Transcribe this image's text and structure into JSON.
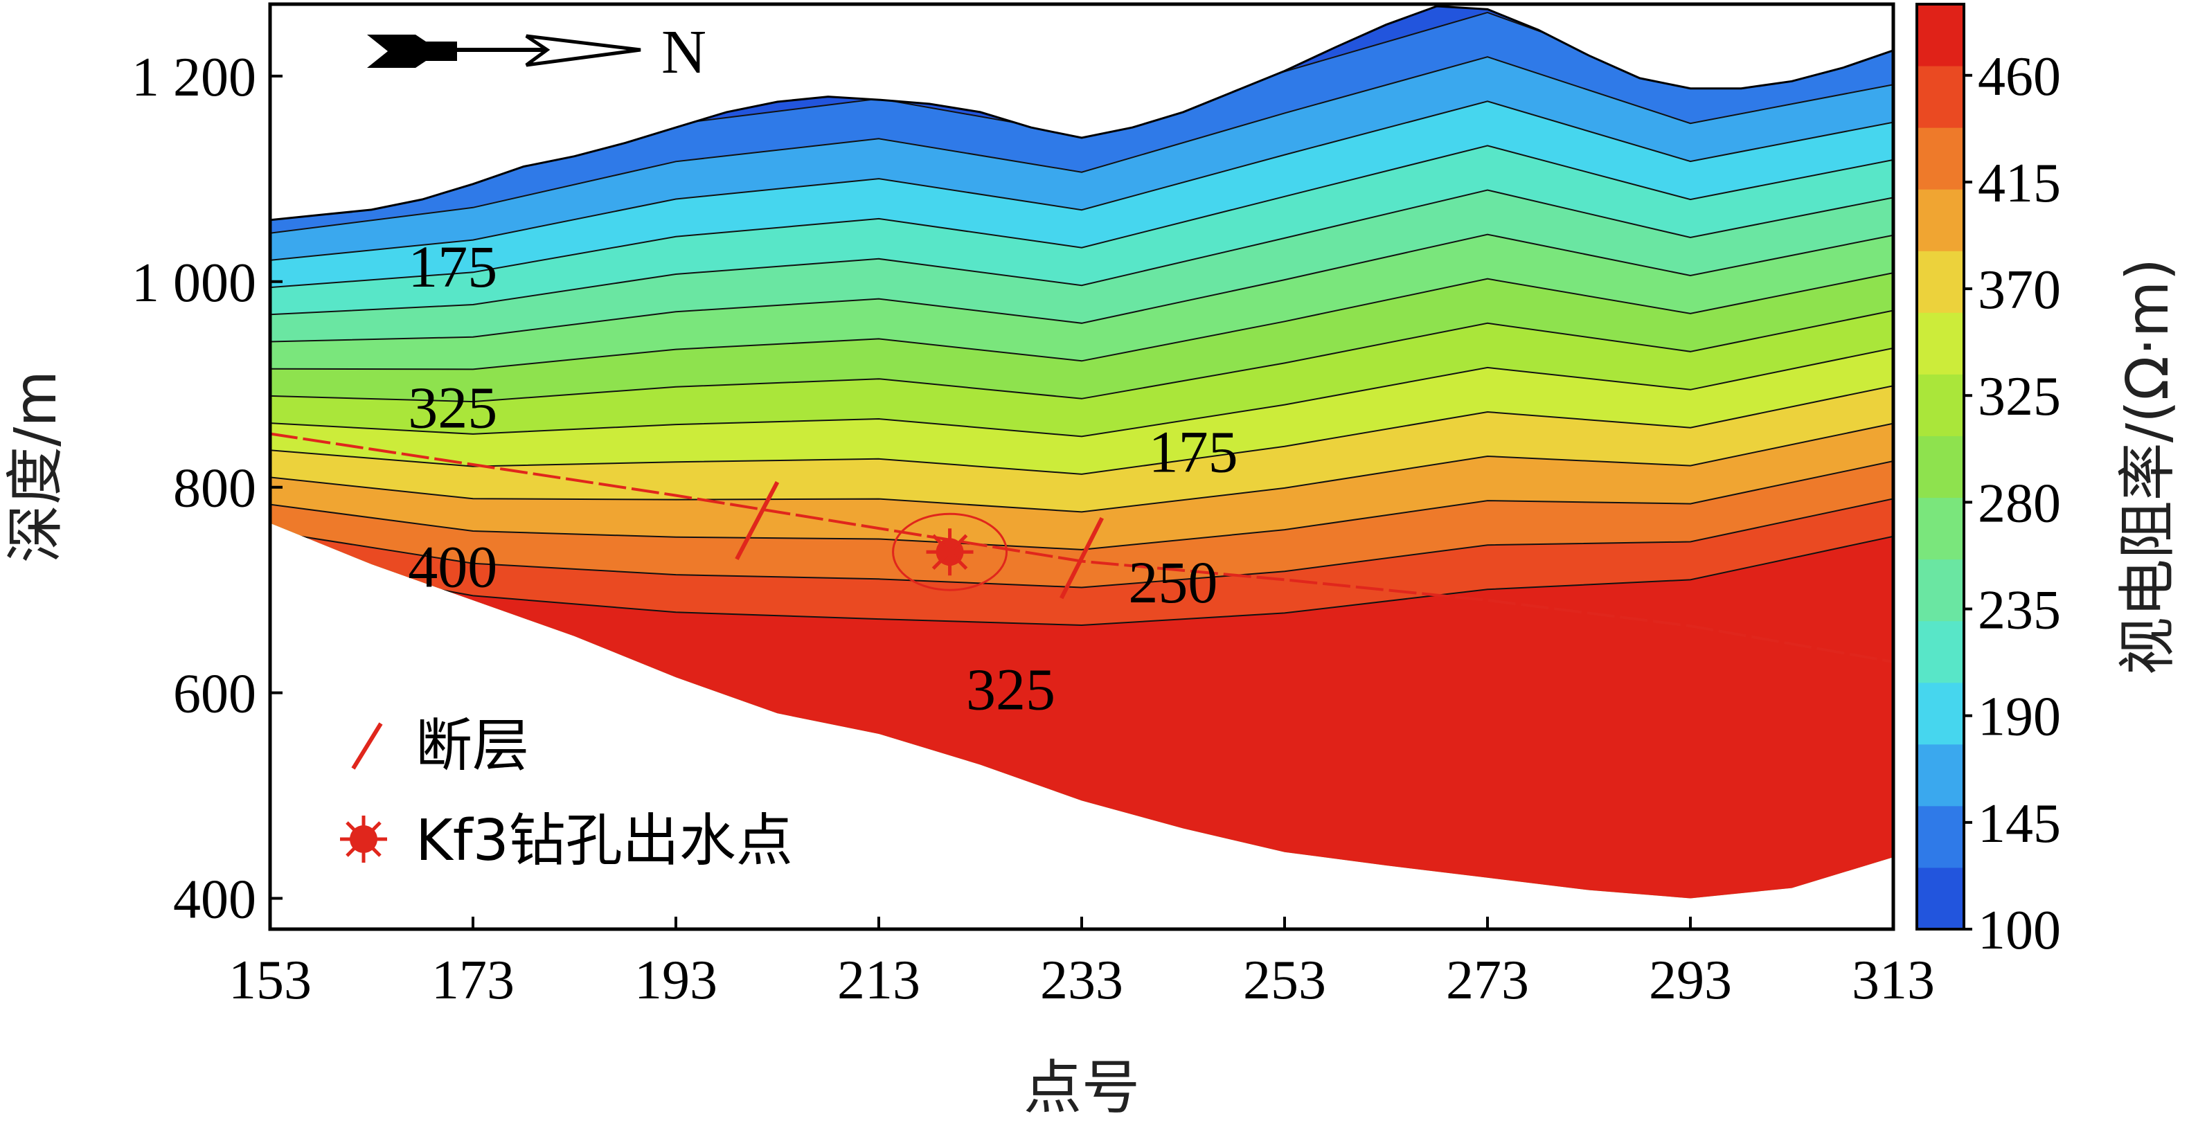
{
  "chart_data": {
    "type": "heatmap",
    "title": "",
    "xlabel": "点号",
    "ylabel": "深度/m",
    "x_ticks": [
      153,
      173,
      193,
      213,
      233,
      253,
      273,
      293,
      313
    ],
    "y_ticks": [
      400,
      600,
      800,
      1000,
      1200
    ],
    "y_tick_labels": [
      "400",
      "600",
      "800",
      "1 000",
      "1 200"
    ],
    "xlim": [
      153,
      313
    ],
    "ylim": [
      370,
      1270
    ],
    "colorbar": {
      "label": "视电阻率/(Ω·m)",
      "ticks": [
        100,
        145,
        190,
        235,
        280,
        325,
        370,
        415,
        460
      ],
      "range": [
        100,
        490
      ],
      "colors": [
        "#2255dd",
        "#2f7ae8",
        "#3aa8ee",
        "#46d6ee",
        "#58e6c8",
        "#6ae6a2",
        "#7ae67c",
        "#8ee24e",
        "#aae63a",
        "#ccec3a",
        "#ecd23c",
        "#f0a532",
        "#ee7a2a",
        "#ea4a22",
        "#e02218"
      ]
    },
    "contour_labels": [
      {
        "text": "175",
        "x": 171,
        "y": 995
      },
      {
        "text": "325",
        "x": 171,
        "y": 858
      },
      {
        "text": "175",
        "x": 244,
        "y": 815
      },
      {
        "text": "400",
        "x": 171,
        "y": 703
      },
      {
        "text": "250",
        "x": 242,
        "y": 688
      },
      {
        "text": "325",
        "x": 226,
        "y": 584
      }
    ],
    "surface_profile": {
      "x": [
        153,
        158,
        163,
        168,
        173,
        178,
        183,
        188,
        193,
        198,
        203,
        208,
        213,
        218,
        223,
        228,
        233,
        238,
        243,
        248,
        253,
        258,
        263,
        268,
        273,
        278,
        283,
        288,
        293,
        298,
        303,
        308,
        313
      ],
      "y": [
        1060,
        1065,
        1070,
        1080,
        1095,
        1112,
        1122,
        1135,
        1150,
        1165,
        1175,
        1180,
        1177,
        1173,
        1165,
        1150,
        1140,
        1150,
        1165,
        1185,
        1205,
        1228,
        1250,
        1268,
        1265,
        1245,
        1220,
        1198,
        1188,
        1188,
        1195,
        1208,
        1225
      ]
    },
    "bottom_boundary": {
      "x": [
        153,
        163,
        173,
        183,
        193,
        203,
        213,
        223,
        233,
        243,
        253,
        263,
        273,
        283,
        293,
        303,
        313
      ],
      "y": [
        765,
        725,
        690,
        655,
        615,
        580,
        560,
        530,
        495,
        468,
        445,
        432,
        420,
        408,
        400,
        410,
        440
      ]
    },
    "fault_trace": {
      "x": [
        153,
        173,
        193,
        213,
        233,
        253,
        273,
        293,
        313
      ],
      "y": [
        852,
        822,
        792,
        760,
        728,
        710,
        690,
        665,
        630
      ]
    },
    "faults": [
      {
        "x": [
          199,
          203
        ],
        "y": [
          730,
          805
        ]
      },
      {
        "x": [
          231,
          235
        ],
        "y": [
          692,
          770
        ]
      }
    ],
    "borehole": {
      "name": "Kf3钻孔出水点",
      "x": 220,
      "y": 737
    },
    "legend": [
      {
        "symbol": "fault",
        "label": "断层"
      },
      {
        "symbol": "borehole",
        "label": "Kf3钻孔出水点"
      }
    ],
    "north_label": "N"
  }
}
